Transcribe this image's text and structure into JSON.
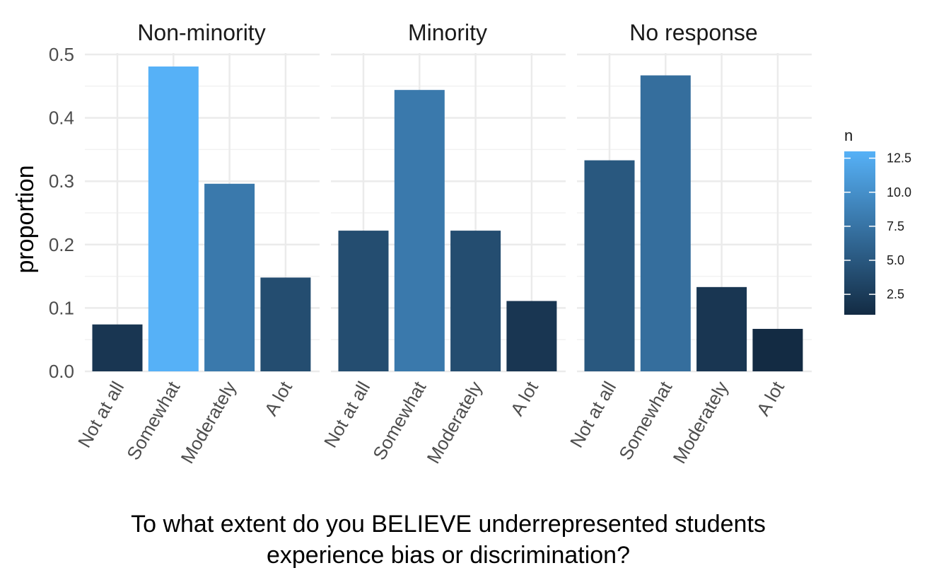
{
  "chart_data": {
    "type": "bar",
    "facets": [
      "Non-minority",
      "Minority",
      "No response"
    ],
    "categories": [
      "Not at all",
      "Somewhat",
      "Moderately",
      "A lot"
    ],
    "series": [
      {
        "facet": "Non-minority",
        "values": [
          0.074,
          0.481,
          0.296,
          0.148
        ],
        "n": [
          2,
          13,
          8,
          4
        ]
      },
      {
        "facet": "Minority",
        "values": [
          0.222,
          0.444,
          0.222,
          0.111
        ],
        "n": [
          4,
          8,
          4,
          2
        ]
      },
      {
        "facet": "No response",
        "values": [
          0.333,
          0.467,
          0.133,
          0.067
        ],
        "n": [
          5,
          7,
          2,
          1
        ]
      }
    ],
    "xlabel_line1": "To what extent do you BELIEVE underrepresented students",
    "xlabel_line2": "experience bias or discrimination?",
    "ylabel": "proportion",
    "ylim": [
      0,
      0.5
    ],
    "yticks": [
      "0.0",
      "0.1",
      "0.2",
      "0.3",
      "0.4",
      "0.5"
    ],
    "legend": {
      "title": "n",
      "placement": "right",
      "ticks": [
        "2.5",
        "5.0",
        "7.5",
        "10.0",
        "12.5"
      ],
      "tick_values": [
        2.5,
        5.0,
        7.5,
        10.0,
        12.5
      ],
      "range": [
        1,
        13
      ],
      "color_low": "#132B43",
      "color_high": "#56B1F7"
    },
    "grid": true
  }
}
